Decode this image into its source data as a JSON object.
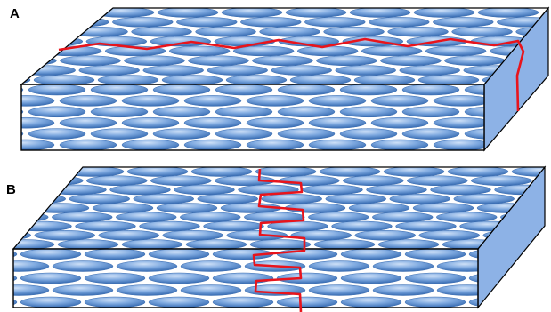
{
  "panels": [
    {
      "id": "A",
      "label": "A"
    },
    {
      "id": "B",
      "label": "B"
    }
  ],
  "colors": {
    "ellipse_light": "#a9c8ef",
    "ellipse_mid": "#6f9fdb",
    "ellipse_dark": "#2f67b1",
    "side_face": "#8db2e6",
    "outline": "#000000",
    "crack": "#e8141c",
    "background": "#ffffff"
  }
}
